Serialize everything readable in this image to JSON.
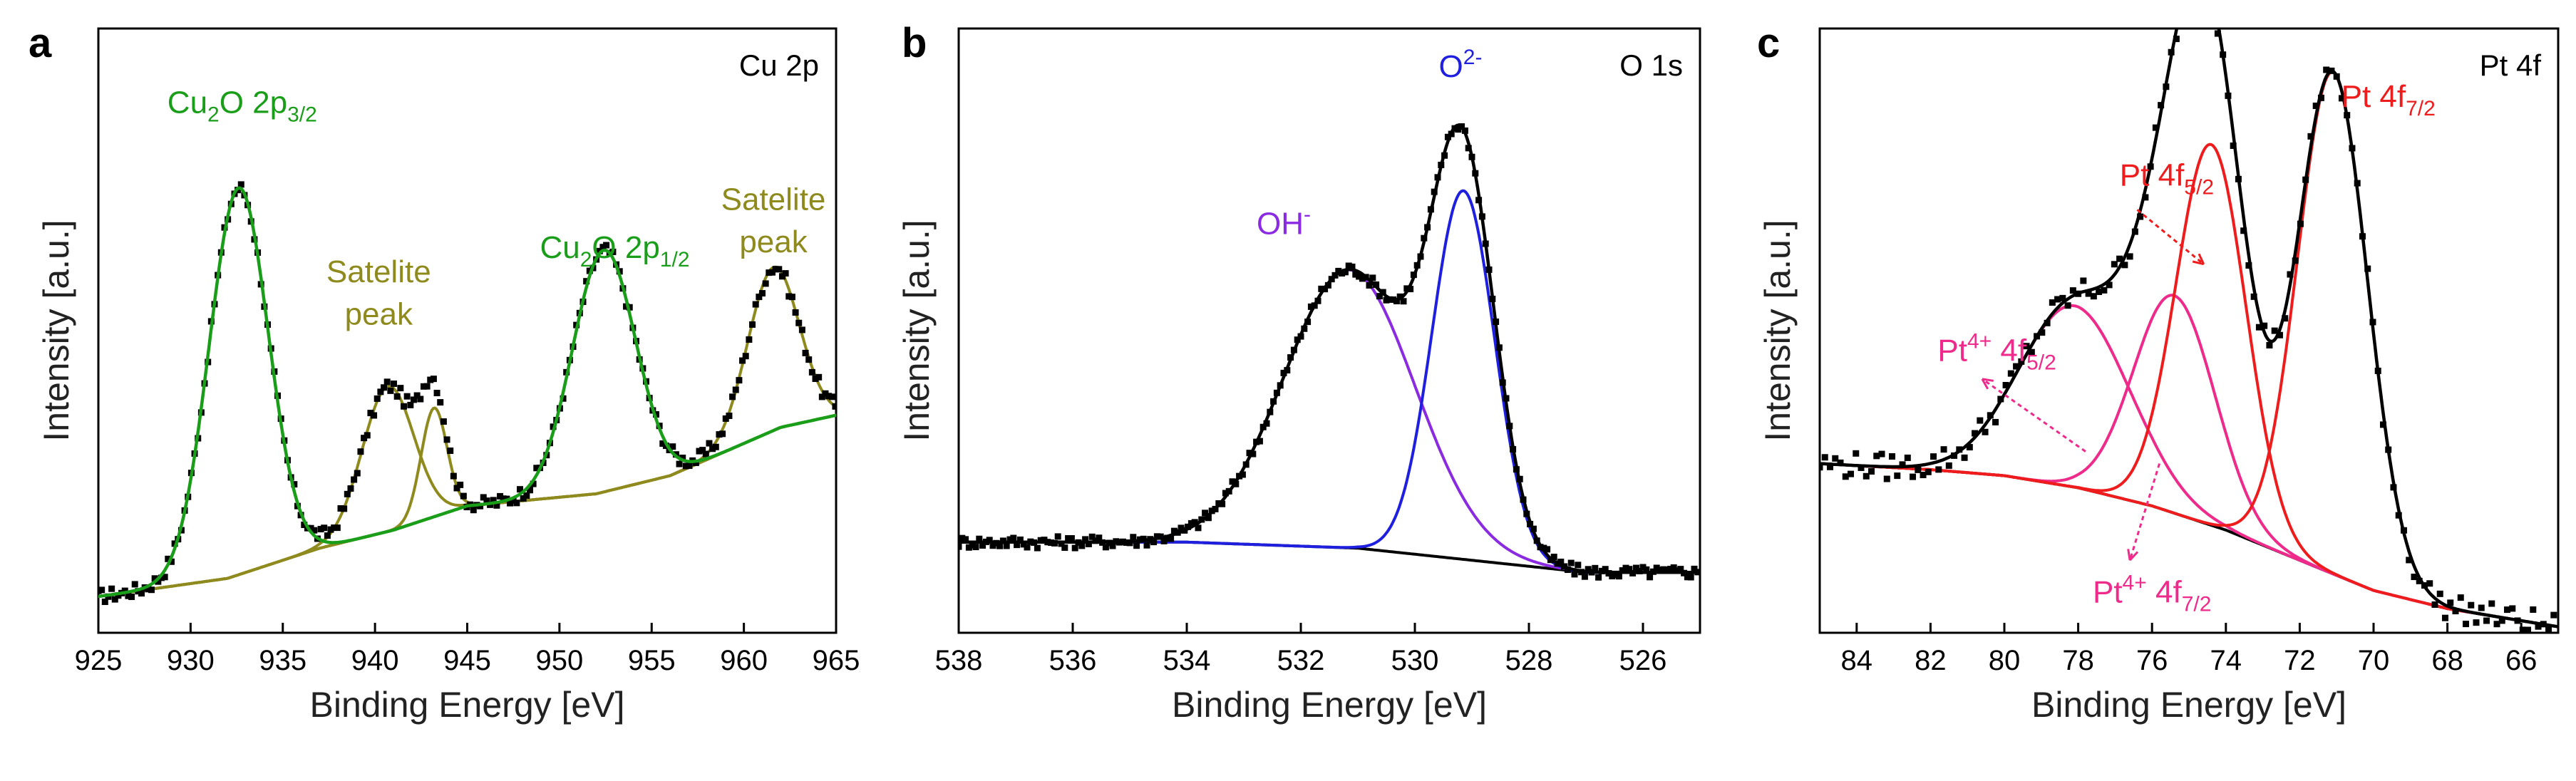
{
  "chart_data": [
    {
      "type": "line",
      "panel_label": "a",
      "inset_label": "Cu 2p",
      "xlabel": "Binding Energy [eV]",
      "ylabel": "Intensity [a.u.]",
      "xlim": [
        925,
        965
      ],
      "ylim": [
        0,
        1.0
      ],
      "x_reversed": false,
      "xticks": [
        925,
        930,
        935,
        940,
        945,
        950,
        955,
        960,
        965
      ],
      "colors": {
        "raw": "#000000",
        "envelope": "#1a9e1a",
        "satellite": "#8f8a1e"
      },
      "annotations": [
        {
          "x": 932.8,
          "y": 0.86,
          "color": "#1a9e1a",
          "parts": [
            [
              "Cu",
              ""
            ],
            [
              "2",
              "sub"
            ],
            [
              "O 2p",
              ""
            ],
            [
              "3/2",
              "sub"
            ]
          ]
        },
        {
          "x": 940.2,
          "y": 0.58,
          "color": "#8f8a1e",
          "parts": [
            [
              "Satelite",
              ""
            ]
          ]
        },
        {
          "x": 940.2,
          "y": 0.51,
          "color": "#8f8a1e",
          "parts": [
            [
              "peak",
              ""
            ]
          ]
        },
        {
          "x": 953.0,
          "y": 0.62,
          "color": "#1a9e1a",
          "parts": [
            [
              "Cu",
              ""
            ],
            [
              "2",
              "sub"
            ],
            [
              "O 2p",
              ""
            ],
            [
              "1/2",
              "sub"
            ]
          ]
        },
        {
          "x": 961.6,
          "y": 0.7,
          "color": "#8f8a1e",
          "parts": [
            [
              "Satelite",
              ""
            ]
          ]
        },
        {
          "x": 961.6,
          "y": 0.63,
          "color": "#8f8a1e",
          "parts": [
            [
              "peak",
              ""
            ]
          ]
        }
      ],
      "background": {
        "name": "background",
        "x": [
          925,
          932,
          937,
          941,
          945,
          952,
          956,
          959,
          962,
          965
        ],
        "y": [
          0.06,
          0.09,
          0.14,
          0.17,
          0.21,
          0.23,
          0.26,
          0.3,
          0.34,
          0.36
        ]
      },
      "peaks": [
        {
          "name": "Cu2O 2p3/2",
          "center": 932.6,
          "height": 0.64,
          "width": 1.6,
          "color": "envelope",
          "draw": false
        },
        {
          "name": "Satelite peak 1",
          "center": 940.7,
          "height": 0.24,
          "width": 1.4,
          "color": "satellite",
          "draw": true
        },
        {
          "name": "Satelite peak 2",
          "center": 943.2,
          "height": 0.18,
          "width": 0.7,
          "color": "satellite",
          "draw": true
        },
        {
          "name": "Cu2O 2p1/2",
          "center": 952.4,
          "height": 0.4,
          "width": 1.7,
          "color": "envelope",
          "draw": false
        },
        {
          "name": "Satelite peak 3",
          "center": 961.6,
          "height": 0.27,
          "width": 1.4,
          "color": "satellite",
          "draw": true
        }
      ],
      "envelope": {
        "color": "envelope",
        "include": [
          0,
          3
        ],
        "plus_background": true
      },
      "satellite_sum": {
        "color": "satellite",
        "include": [
          1,
          2,
          4
        ],
        "plus_background": true
      },
      "raw": {
        "name": "data",
        "noise": 0.012,
        "step": 0.18
      }
    },
    {
      "type": "line",
      "panel_label": "b",
      "inset_label": "O 1s",
      "xlabel": "Binding Energy [eV]",
      "ylabel": "Intensity [a.u.]",
      "xlim": [
        538,
        525
      ],
      "ylim": [
        0,
        1.0
      ],
      "x_reversed": true,
      "xticks": [
        538,
        536,
        534,
        532,
        530,
        528,
        526
      ],
      "colors": {
        "raw": "#000000",
        "envelope": "#000000",
        "oh": "#8a2be2",
        "o2": "#1f1fe0"
      },
      "annotations": [
        {
          "x": 529.2,
          "y": 0.92,
          "color": "#1f1fe0",
          "parts": [
            [
              "O",
              ""
            ],
            [
              "2-",
              "sup"
            ]
          ]
        },
        {
          "x": 532.3,
          "y": 0.66,
          "color": "#8a2be2",
          "parts": [
            [
              "OH",
              ""
            ],
            [
              "-",
              "sup"
            ]
          ]
        }
      ],
      "background": {
        "name": "background",
        "x": [
          538,
          534,
          531,
          530,
          529,
          528,
          527,
          525
        ],
        "y": [
          0.15,
          0.15,
          0.14,
          0.13,
          0.12,
          0.11,
          0.1,
          0.1
        ]
      },
      "peaks": [
        {
          "name": "OH-",
          "center": 531.15,
          "height": 0.46,
          "width": 1.15,
          "color": "oh",
          "draw": true
        },
        {
          "name": "O2-",
          "center": 529.15,
          "height": 0.61,
          "width": 0.55,
          "color": "o2",
          "draw": true
        }
      ],
      "envelope": {
        "color": "envelope",
        "include": [
          0,
          1
        ],
        "plus_background": true
      },
      "raw": {
        "name": "data",
        "noise": 0.01,
        "step": 0.06
      }
    },
    {
      "type": "line",
      "panel_label": "c",
      "inset_label": "Pt 4f",
      "xlabel": "Binding Energy [eV]",
      "ylabel": "Intensity [a.u.]",
      "xlim": [
        85,
        65
      ],
      "ylim": [
        0,
        1.0
      ],
      "x_reversed": true,
      "xticks": [
        84,
        82,
        80,
        78,
        76,
        74,
        72,
        70,
        68,
        66
      ],
      "colors": {
        "raw": "#000000",
        "envelope": "#000000",
        "pt0": "#ee1c1c",
        "pt4": "#ee2a8a"
      },
      "annotations": [
        {
          "x": 69.6,
          "y": 0.87,
          "color": "#ee1c1c",
          "parts": [
            [
              "Pt 4f",
              ""
            ],
            [
              "7/2",
              "sub"
            ]
          ]
        },
        {
          "x": 75.6,
          "y": 0.74,
          "color": "#ee1c1c",
          "parts": [
            [
              "Pt 4f",
              ""
            ],
            [
              "5/2",
              "sub"
            ]
          ]
        },
        {
          "x": 80.2,
          "y": 0.45,
          "color": "#ee2a8a",
          "parts": [
            [
              "Pt",
              ""
            ],
            [
              "4+",
              "sup"
            ],
            [
              " 4f",
              ""
            ],
            [
              "5/2",
              "sub"
            ]
          ]
        },
        {
          "x": 76.0,
          "y": 0.05,
          "color": "#ee2a8a",
          "parts": [
            [
              "Pt",
              ""
            ],
            [
              "4+",
              "sup"
            ],
            [
              " 4f",
              ""
            ],
            [
              "7/2",
              "sub"
            ]
          ]
        }
      ],
      "arrows": [
        {
          "from": [
            76.4,
            0.7
          ],
          "to": [
            74.6,
            0.61
          ],
          "color": "#ee1c1c"
        },
        {
          "from": [
            77.8,
            0.3
          ],
          "to": [
            80.6,
            0.42
          ],
          "color": "#ee2a8a"
        },
        {
          "from": [
            75.8,
            0.28
          ],
          "to": [
            76.6,
            0.12
          ],
          "color": "#ee2a8a"
        }
      ],
      "background": {
        "name": "background",
        "x": [
          85,
          82,
          80,
          78,
          76,
          74,
          72,
          70,
          68,
          66,
          65
        ],
        "y": [
          0.28,
          0.27,
          0.26,
          0.24,
          0.21,
          0.17,
          0.12,
          0.07,
          0.04,
          0.02,
          0.01
        ]
      },
      "peaks": [
        {
          "name": "Pt4+ 4f5/2",
          "center": 78.1,
          "height": 0.3,
          "width": 1.5,
          "color": "pt4",
          "draw": true
        },
        {
          "name": "Pt4+ 4f7/2",
          "center": 75.4,
          "height": 0.36,
          "width": 1.1,
          "color": "pt4",
          "draw": true
        },
        {
          "name": "Pt 4f5/2",
          "center": 74.4,
          "height": 0.63,
          "width": 0.95,
          "color": "pt0",
          "draw": true
        },
        {
          "name": "Pt 4f7/2",
          "center": 71.1,
          "height": 0.83,
          "width": 0.95,
          "color": "pt0",
          "draw": true
        }
      ],
      "envelope": {
        "color": "envelope",
        "include": [
          0,
          1,
          2,
          3
        ],
        "plus_background": true
      },
      "raw": {
        "name": "data",
        "noise": 0.022,
        "step": 0.14
      }
    }
  ]
}
